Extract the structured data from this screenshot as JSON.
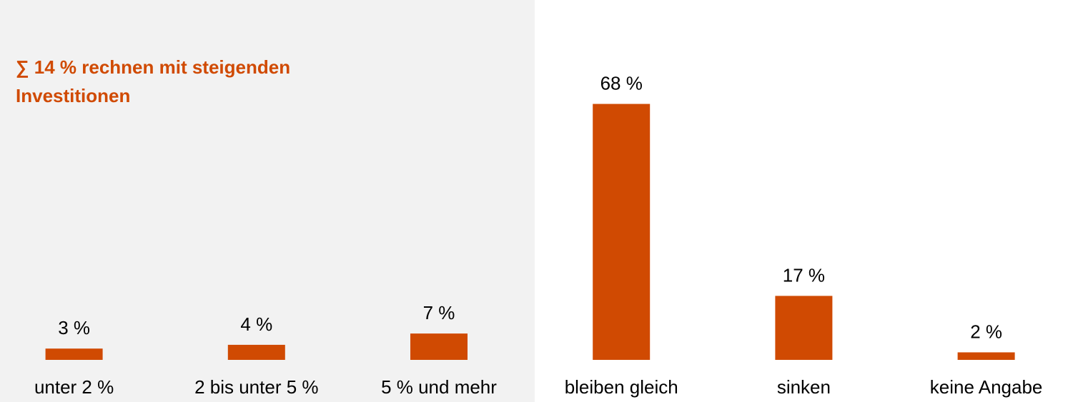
{
  "chart_data": {
    "type": "bar",
    "annotation": "∑ 14 % rechnen mit steigenden Investitionen",
    "categories": [
      "unter 2 %",
      "2 bis unter 5 %",
      "5 % und mehr",
      "bleiben gleich",
      "sinken",
      "keine Angabe"
    ],
    "values": [
      3,
      4,
      7,
      68,
      17,
      2
    ],
    "value_labels": [
      "3 %",
      "4 %",
      "7 %",
      "68 %",
      "17 %",
      "2 %"
    ],
    "color": "#d04a02",
    "ylim": [
      0,
      70
    ]
  }
}
